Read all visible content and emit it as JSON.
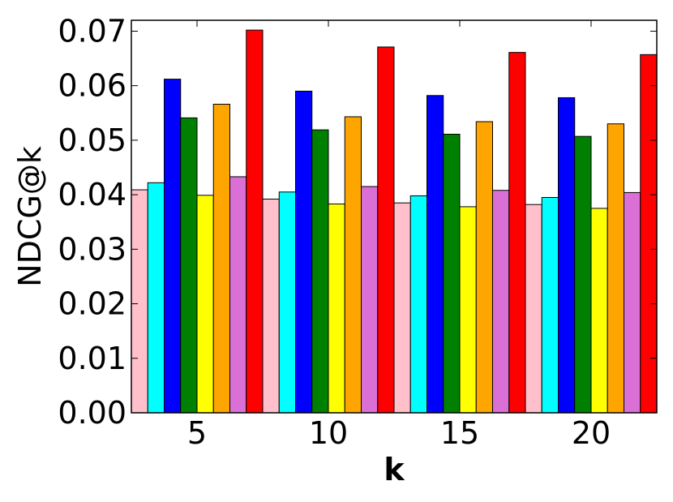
{
  "chart_data": {
    "type": "bar",
    "title": "",
    "xlabel": "k",
    "ylabel": "NDCG@k",
    "categories": [
      "5",
      "10",
      "15",
      "20"
    ],
    "ylim": [
      0,
      0.072
    ],
    "yticks": [
      "0.00",
      "0.01",
      "0.02",
      "0.03",
      "0.04",
      "0.05",
      "0.06",
      "0.07"
    ],
    "grid": false,
    "legend": "none",
    "series": [
      {
        "color": "#ffc0cb",
        "values": [
          0.0409,
          0.0392,
          0.0385,
          0.0382
        ]
      },
      {
        "color": "#00ffff",
        "values": [
          0.0422,
          0.0405,
          0.0398,
          0.0395
        ]
      },
      {
        "color": "#0000ff",
        "values": [
          0.0612,
          0.059,
          0.0582,
          0.0578
        ]
      },
      {
        "color": "#008000",
        "values": [
          0.0541,
          0.0519,
          0.0511,
          0.0507
        ]
      },
      {
        "color": "#ffff00",
        "values": [
          0.0399,
          0.0383,
          0.0378,
          0.0375
        ]
      },
      {
        "color": "#ffa500",
        "values": [
          0.0566,
          0.0543,
          0.0534,
          0.053
        ]
      },
      {
        "color": "#da70d6",
        "values": [
          0.0433,
          0.0415,
          0.0408,
          0.0404
        ]
      },
      {
        "color": "#ff0000",
        "values": [
          0.0702,
          0.0671,
          0.0661,
          0.0657
        ]
      }
    ]
  }
}
